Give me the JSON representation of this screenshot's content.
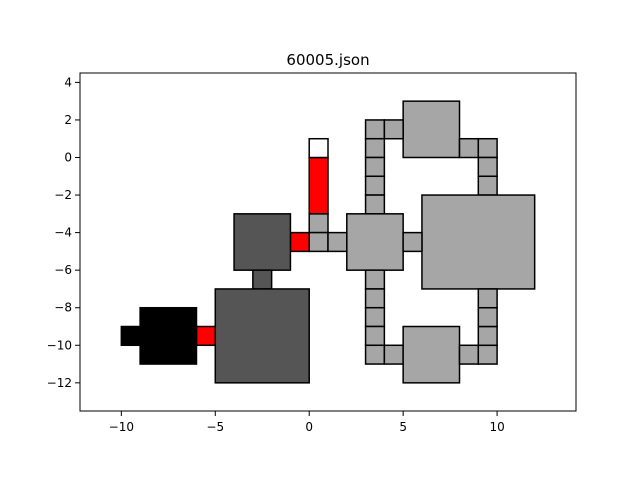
{
  "title": "60005.json",
  "colors": {
    "light": "#a6a6a6",
    "dark": "#555555",
    "black": "#000000",
    "red": "#ff0000",
    "white": "#ffffff",
    "edge": "#000000"
  },
  "chart_data": {
    "type": "diagram",
    "title": "60005.json",
    "xlim": [
      -12.2,
      14.2
    ],
    "ylim": [
      -13.5,
      4.5
    ],
    "x_ticks": [
      -10,
      -5,
      0,
      5,
      10
    ],
    "y_ticks": [
      4,
      2,
      0,
      -2,
      -4,
      -6,
      -8,
      -10,
      -12
    ],
    "rects": [
      {
        "x0": 5,
        "y0": 0,
        "x1": 8,
        "y1": 3,
        "fill": "light"
      },
      {
        "x0": 3,
        "y0": 1,
        "x1": 4,
        "y1": 2,
        "fill": "light"
      },
      {
        "x0": 4,
        "y0": 1,
        "x1": 5,
        "y1": 2,
        "fill": "light"
      },
      {
        "x0": 3,
        "y0": 0,
        "x1": 4,
        "y1": 1,
        "fill": "light"
      },
      {
        "x0": 3,
        "y0": -1,
        "x1": 4,
        "y1": 0,
        "fill": "light"
      },
      {
        "x0": 3,
        "y0": -2,
        "x1": 4,
        "y1": -1,
        "fill": "light"
      },
      {
        "x0": 3,
        "y0": -3,
        "x1": 4,
        "y1": -2,
        "fill": "light"
      },
      {
        "x0": 8,
        "y0": 0,
        "x1": 9,
        "y1": 1,
        "fill": "light"
      },
      {
        "x0": 9,
        "y0": 0,
        "x1": 10,
        "y1": 1,
        "fill": "light"
      },
      {
        "x0": 9,
        "y0": -1,
        "x1": 10,
        "y1": 0,
        "fill": "light"
      },
      {
        "x0": 9,
        "y0": -2,
        "x1": 10,
        "y1": -1,
        "fill": "light"
      },
      {
        "x0": 6,
        "y0": -7,
        "x1": 12,
        "y1": -2,
        "fill": "light"
      },
      {
        "x0": 2,
        "y0": -6,
        "x1": 5,
        "y1": -3,
        "fill": "light"
      },
      {
        "x0": 5,
        "y0": -5,
        "x1": 6,
        "y1": -4,
        "fill": "light"
      },
      {
        "x0": 0,
        "y0": -4,
        "x1": 1,
        "y1": -3,
        "fill": "light"
      },
      {
        "x0": 0,
        "y0": -5,
        "x1": 1,
        "y1": -4,
        "fill": "light"
      },
      {
        "x0": 1,
        "y0": -5,
        "x1": 2,
        "y1": -4,
        "fill": "light"
      },
      {
        "x0": 0,
        "y0": -3,
        "x1": 1,
        "y1": 0,
        "fill": "red"
      },
      {
        "x0": 0,
        "y0": 0,
        "x1": 1,
        "y1": 1,
        "fill": "white"
      },
      {
        "x0": -1,
        "y0": -5,
        "x1": 0,
        "y1": -4,
        "fill": "red"
      },
      {
        "x0": -4,
        "y0": -6,
        "x1": -1,
        "y1": -3,
        "fill": "dark"
      },
      {
        "x0": -3,
        "y0": -7,
        "x1": -2,
        "y1": -6,
        "fill": "dark"
      },
      {
        "x0": -5,
        "y0": -12,
        "x1": 0,
        "y1": -7,
        "fill": "dark"
      },
      {
        "x0": -6,
        "y0": -10,
        "x1": -5,
        "y1": -9,
        "fill": "red"
      },
      {
        "x0": -9,
        "y0": -11,
        "x1": -6,
        "y1": -8,
        "fill": "black"
      },
      {
        "x0": -10,
        "y0": -10,
        "x1": -9,
        "y1": -9,
        "fill": "black"
      },
      {
        "x0": 3,
        "y0": -7,
        "x1": 4,
        "y1": -6,
        "fill": "light"
      },
      {
        "x0": 3,
        "y0": -8,
        "x1": 4,
        "y1": -7,
        "fill": "light"
      },
      {
        "x0": 3,
        "y0": -9,
        "x1": 4,
        "y1": -8,
        "fill": "light"
      },
      {
        "x0": 3,
        "y0": -10,
        "x1": 4,
        "y1": -9,
        "fill": "light"
      },
      {
        "x0": 3,
        "y0": -11,
        "x1": 4,
        "y1": -10,
        "fill": "light"
      },
      {
        "x0": 4,
        "y0": -11,
        "x1": 5,
        "y1": -10,
        "fill": "light"
      },
      {
        "x0": 5,
        "y0": -12,
        "x1": 8,
        "y1": -9,
        "fill": "light"
      },
      {
        "x0": 8,
        "y0": -11,
        "x1": 9,
        "y1": -10,
        "fill": "light"
      },
      {
        "x0": 9,
        "y0": -11,
        "x1": 10,
        "y1": -10,
        "fill": "light"
      },
      {
        "x0": 9,
        "y0": -10,
        "x1": 10,
        "y1": -9,
        "fill": "light"
      },
      {
        "x0": 9,
        "y0": -9,
        "x1": 10,
        "y1": -8,
        "fill": "light"
      },
      {
        "x0": 9,
        "y0": -8,
        "x1": 10,
        "y1": -7,
        "fill": "light"
      }
    ]
  }
}
